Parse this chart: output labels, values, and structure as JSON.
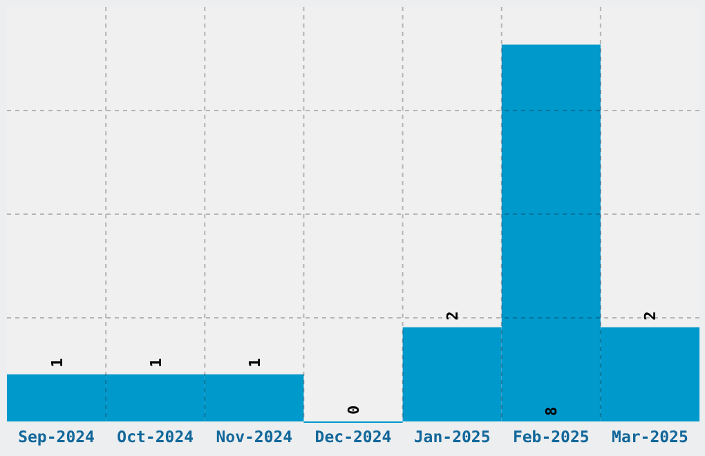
{
  "chart_data": {
    "type": "bar",
    "categories": [
      "Sep-2024",
      "Oct-2024",
      "Nov-2024",
      "Dec-2024",
      "Jan-2025",
      "Feb-2025",
      "Mar-2025"
    ],
    "values": [
      1,
      1,
      1,
      0,
      2,
      8,
      2
    ],
    "color": "#0099cc",
    "ylim": [
      0,
      8.8
    ],
    "yticks": [
      {
        "value": 2.2,
        "label": null
      },
      {
        "value": 4.4,
        "label": null
      },
      {
        "value": 6.6,
        "label": null
      }
    ],
    "tick_labels": "x",
    "grid": true,
    "data_labels": true
  }
}
